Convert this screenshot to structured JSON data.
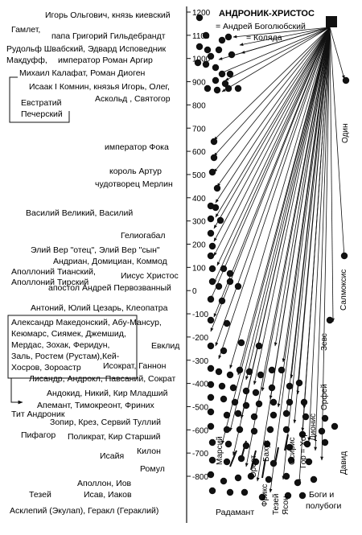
{
  "header": {
    "title": "АНДРОНИК-ХРИСТОС",
    "eq_bogolubsky": "= Андрей Боголюбский",
    "eq_kolyada": "= Коляда"
  },
  "axis": {
    "ticks": [
      "1200",
      "1100",
      "1000",
      "900",
      "800",
      "700",
      "600",
      "500",
      "400",
      "300",
      "200",
      "100",
      "0",
      "-100",
      "-200",
      "-300",
      "-400",
      "-500",
      "-600",
      "-700",
      "-800"
    ]
  },
  "left_labels": {
    "igor": "Игорь Ольгович, князь киевский",
    "hamlet": "Гамлет,",
    "gregory": "папа Григорий Гильдебрандт",
    "rudolf": "Рудольф Швабский, Эдвард Исповедник",
    "macduff": "Макдуфф,",
    "argir": "император Роман Аргир",
    "kalafat": "Михаил Калафат, Роман Диоген",
    "isaac": "Исаак I Комнин, князья Игорь, Олег,",
    "askold": "Аскольд , Святогор",
    "evstratiy": "Евстратий",
    "pechersky": "Печерский",
    "foka": "император Фока",
    "arthur": "король Артур",
    "merlin": "чудотворец Мерлин",
    "vasily": "Василий Великий,  Василий",
    "heliogabal": "Гелиогабал",
    "aelius": "Элий Вер \"отец\", Элий Вер \"сын\"",
    "hadrian": "Андриан, Домициан,  Коммод",
    "apollony_t": "Аполлоний Тианский,",
    "apollony_tir": "Аполлоний Тирский",
    "jesus": "Иисус Христос",
    "andrew": "апостол Андрей Первозванный",
    "antony": "Антоний, Юлий Цезарь, Клеопатра",
    "box_1": "Александр Македонский, Абу-Мансур,",
    "box_2": "Кеюмарс, Сиямек, Джемшид,",
    "box_3": "Мердас, Зохак, Феридун,",
    "box_4": "Заль, Ростем (Рустам),Кей-",
    "box_5": "Хосров, Зороастр",
    "evklid": "Евклид",
    "isokrat": "Исократ, Ганнон",
    "lysander": "Лисандр, Андрокл, Павсаний, Сократ",
    "andokid": "Андокид, Никий, Кир Младший",
    "apemant": "Апемант, Тимокреонт, Фриних",
    "titus": "Тит Андроник",
    "zopir": "Зопир, Крез, Сервий Туллий",
    "pythagoras": "Пифагор",
    "polykrat": "Поликрат, Кир Старший",
    "kilon": "Килон",
    "isaiah": "Исайя",
    "romulus": "Ромул",
    "apollon": "Аполлон, Иов",
    "theseus": "Тезей",
    "isav": "Исав, Иаков",
    "asklepios": "Асклепий (Экулап), Геракл (Гераклий)"
  },
  "right_labels": {
    "odin": "Один",
    "salmoxis": "Салмоксис",
    "zeus": "Зевс",
    "orpheus": "Орфей",
    "dionis": "Дионис",
    "david": "Давид",
    "mars": "Марсий",
    "orest": "Орест",
    "bakhus": "Бахус",
    "osiris": "Осирис",
    "gor": "Гор = Хор",
    "friks": "Фрикс",
    "tezey_r": "Тезей",
    "yason": "Ясон",
    "radamant": "Радамант",
    "gods_1": "Боги и",
    "gods_2": "полубоги"
  }
}
